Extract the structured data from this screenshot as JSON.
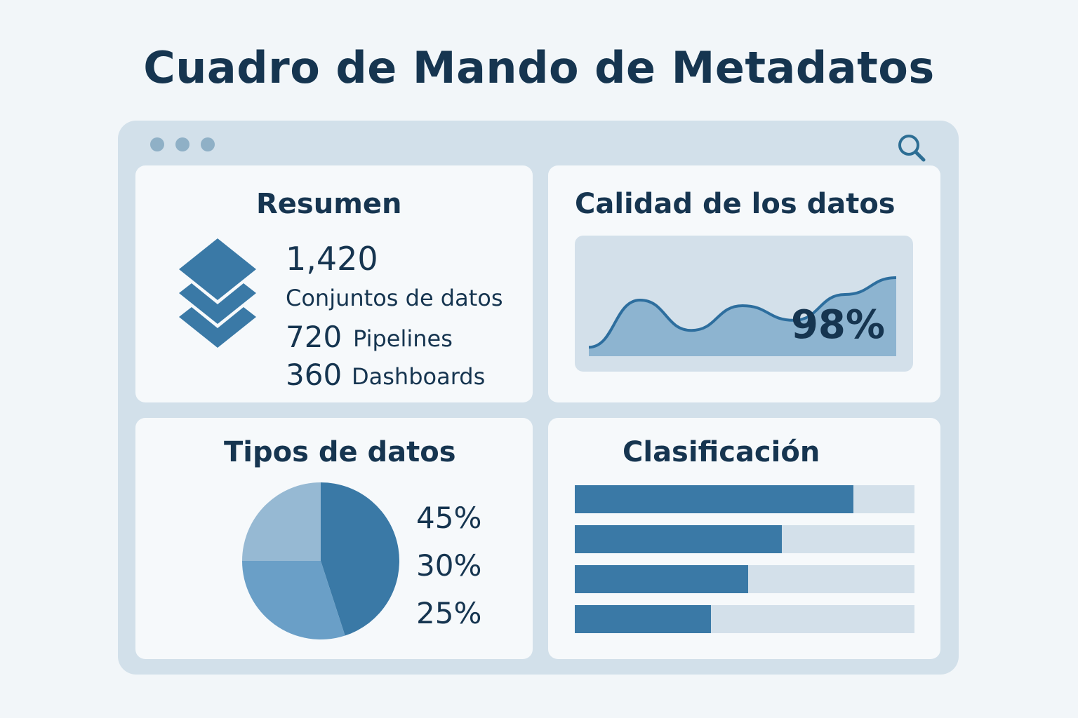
{
  "page": {
    "title": "Cuadro de Mando de Metadatos"
  },
  "colors": {
    "background": "#f2f6f9",
    "window": "#d2e0ea",
    "panel": "#f6f9fb",
    "primary": "#3a79a6",
    "secondary": "#6a9fc7",
    "tertiary": "#96b9d3",
    "text": "#163550"
  },
  "icons": {
    "window_controls": [
      "dot-icon",
      "dot-icon",
      "dot-icon"
    ],
    "search": "search-icon",
    "summary": "layers-icon"
  },
  "summary": {
    "title": "Resumen",
    "datasets_count": "1,420",
    "datasets_label": "Conjuntos de datos",
    "pipelines_count": "720",
    "pipelines_label": "Pipelines",
    "dashboards_count": "360",
    "dashboards_label": "Dashboards"
  },
  "quality": {
    "title": "Calidad de los datos",
    "value": "98%"
  },
  "types": {
    "title": "Tipos de datos",
    "labels": [
      "45%",
      "30%",
      "25%"
    ]
  },
  "classification": {
    "title": "Clasificación"
  },
  "chart_data": [
    {
      "type": "area",
      "y": [
        0.08,
        0.5,
        0.23,
        0.45,
        0.32,
        0.55,
        0.7
      ],
      "series": [
        {
          "values": [
            0.08,
            0.5,
            0.23,
            0.45,
            0.32,
            0.55,
            0.7
          ]
        }
      ]
    },
    {
      "type": "pie",
      "categories": [
        "45%",
        "30%",
        "25%"
      ],
      "values": [
        45,
        30,
        25
      ]
    },
    {
      "type": "bar",
      "orientation": "horizontal",
      "values": [
        0.82,
        0.61,
        0.51,
        0.4
      ],
      "xlim": [
        0,
        1
      ]
    }
  ]
}
